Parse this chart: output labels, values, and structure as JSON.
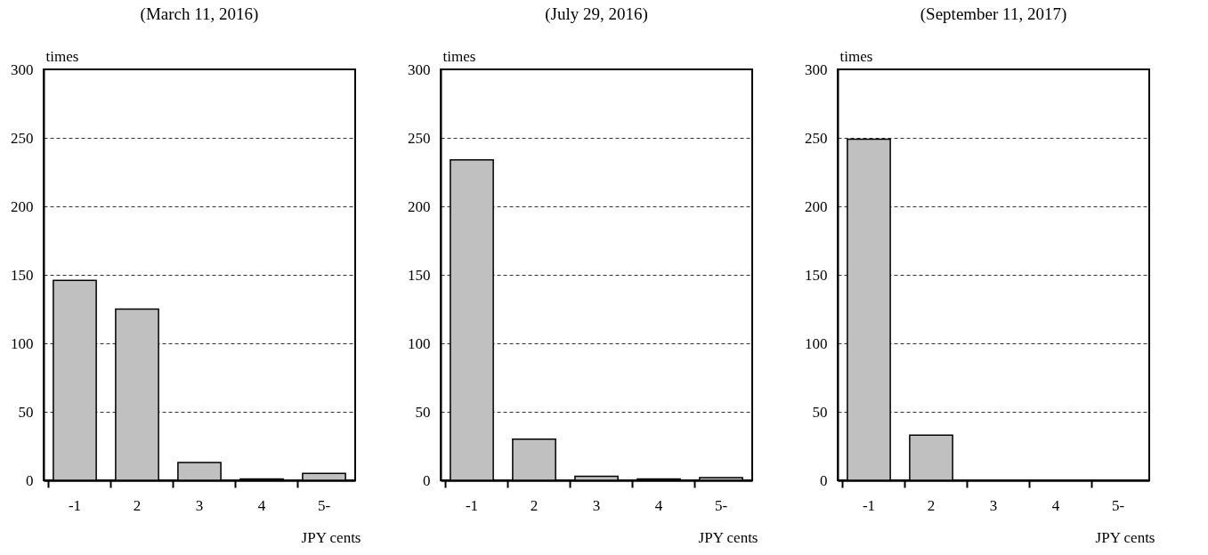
{
  "chart_data": [
    {
      "type": "bar",
      "title": "(March 11, 2016)",
      "xlabel": "JPY cents",
      "ylabel": "times",
      "categories": [
        "-1",
        "2",
        "3",
        "4",
        "5-"
      ],
      "values": [
        146,
        125,
        13,
        1,
        5
      ],
      "color": "#c0c0c0",
      "ylim": [
        0,
        300
      ],
      "yticks": [
        0,
        50,
        100,
        150,
        200,
        250,
        300
      ],
      "grid": "y"
    },
    {
      "type": "bar",
      "title": "(July 29, 2016)",
      "xlabel": "JPY cents",
      "ylabel": "times",
      "categories": [
        "-1",
        "2",
        "3",
        "4",
        "5-"
      ],
      "values": [
        234,
        30,
        3,
        1,
        2
      ],
      "color": "#c0c0c0",
      "ylim": [
        0,
        300
      ],
      "yticks": [
        0,
        50,
        100,
        150,
        200,
        250,
        300
      ],
      "grid": "y"
    },
    {
      "type": "bar",
      "title": "(September 11, 2017)",
      "xlabel": "JPY cents",
      "ylabel": "times",
      "categories": [
        "-1",
        "2",
        "3",
        "4",
        "5-"
      ],
      "values": [
        249,
        33,
        0,
        0,
        0
      ],
      "color": "#c0c0c0",
      "ylim": [
        0,
        300
      ],
      "yticks": [
        0,
        50,
        100,
        150,
        200,
        250,
        300
      ],
      "grid": "y"
    }
  ]
}
